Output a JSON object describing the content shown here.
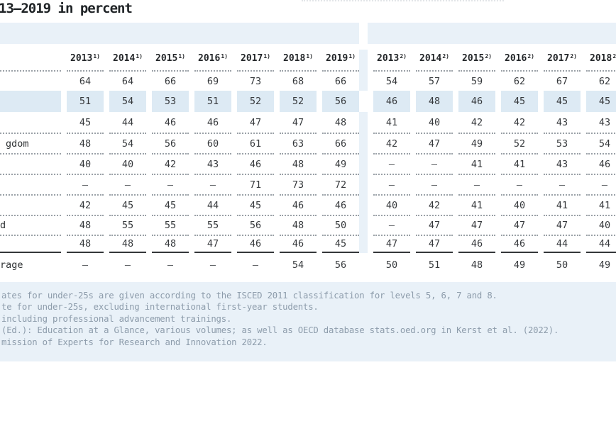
{
  "title": "13–2019 in percent",
  "table": {
    "column_groups": [
      {
        "sup": "1)",
        "years": [
          "2013",
          "2014",
          "2015",
          "2016",
          "2017",
          "2018",
          "2019"
        ]
      },
      {
        "sup": "2)",
        "years": [
          "2013",
          "2014",
          "2015",
          "2016",
          "2017",
          "2018"
        ]
      }
    ],
    "rows": [
      {
        "label": "",
        "highlight": false,
        "g1": [
          "64",
          "64",
          "66",
          "69",
          "73",
          "68",
          "66"
        ],
        "g2": [
          "54",
          "57",
          "59",
          "62",
          "67",
          "62"
        ]
      },
      {
        "label": "",
        "highlight": true,
        "g1": [
          "51",
          "54",
          "53",
          "51",
          "52",
          "52",
          "56"
        ],
        "g2": [
          "46",
          "48",
          "46",
          "45",
          "45",
          "45"
        ]
      },
      {
        "label": "",
        "highlight": false,
        "g1": [
          "45",
          "44",
          "46",
          "46",
          "47",
          "47",
          "48"
        ],
        "g2": [
          "41",
          "40",
          "42",
          "42",
          "43",
          "43"
        ]
      },
      {
        "label": "gdom",
        "highlight": false,
        "g1": [
          "48",
          "54",
          "56",
          "60",
          "61",
          "63",
          "66"
        ],
        "g2": [
          "42",
          "47",
          "49",
          "52",
          "53",
          "54"
        ]
      },
      {
        "label": "",
        "highlight": false,
        "g1": [
          "40",
          "40",
          "42",
          "43",
          "46",
          "48",
          "49"
        ],
        "g2": [
          "–",
          "–",
          "41",
          "41",
          "43",
          "46"
        ]
      },
      {
        "label": "",
        "highlight": false,
        "g1": [
          "–",
          "–",
          "–",
          "–",
          "71",
          "73",
          "72"
        ],
        "g2": [
          "–",
          "–",
          "–",
          "–",
          "–",
          "–"
        ]
      },
      {
        "label": "",
        "highlight": false,
        "g1": [
          "42",
          "45",
          "45",
          "44",
          "45",
          "46",
          "46"
        ],
        "g2": [
          "40",
          "42",
          "41",
          "40",
          "41",
          "41"
        ]
      },
      {
        "label": "d",
        "highlight": false,
        "g1": [
          "48",
          "55",
          "55",
          "55",
          "56",
          "48",
          "50"
        ],
        "g2": [
          "–",
          "47",
          "47",
          "47",
          "47",
          "40"
        ]
      },
      {
        "label": "",
        "highlight": false,
        "g1": [
          "48",
          "48",
          "48",
          "47",
          "46",
          "46",
          "45"
        ],
        "g2": [
          "47",
          "47",
          "46",
          "46",
          "44",
          "44"
        ]
      },
      {
        "label": "rage",
        "highlight": false,
        "total": true,
        "g1": [
          "–",
          "–",
          "–",
          "–",
          "–",
          "54",
          "56"
        ],
        "g2": [
          "50",
          "51",
          "48",
          "49",
          "50",
          "49"
        ]
      }
    ]
  },
  "footnotes": [
    "ates for under-25s are given according to the ISCED 2011 classification for levels 5, 6, 7 and 8.",
    "te for under-25s, excluding international first-year students.",
    "including professional advancement trainings.",
    "(Ed.): Education at a Glance, various volumes; as well as OECD database stats.oed.org in Kerst et al. (2022).",
    "mission of Experts for Research and Innovation 2022."
  ],
  "colors": {
    "band_background": "#e9f1f8",
    "highlight_cell": "#ddeaf4",
    "footnote_text": "#8d9cab",
    "value_text": "#36393c",
    "title_text": "#1f2326"
  }
}
